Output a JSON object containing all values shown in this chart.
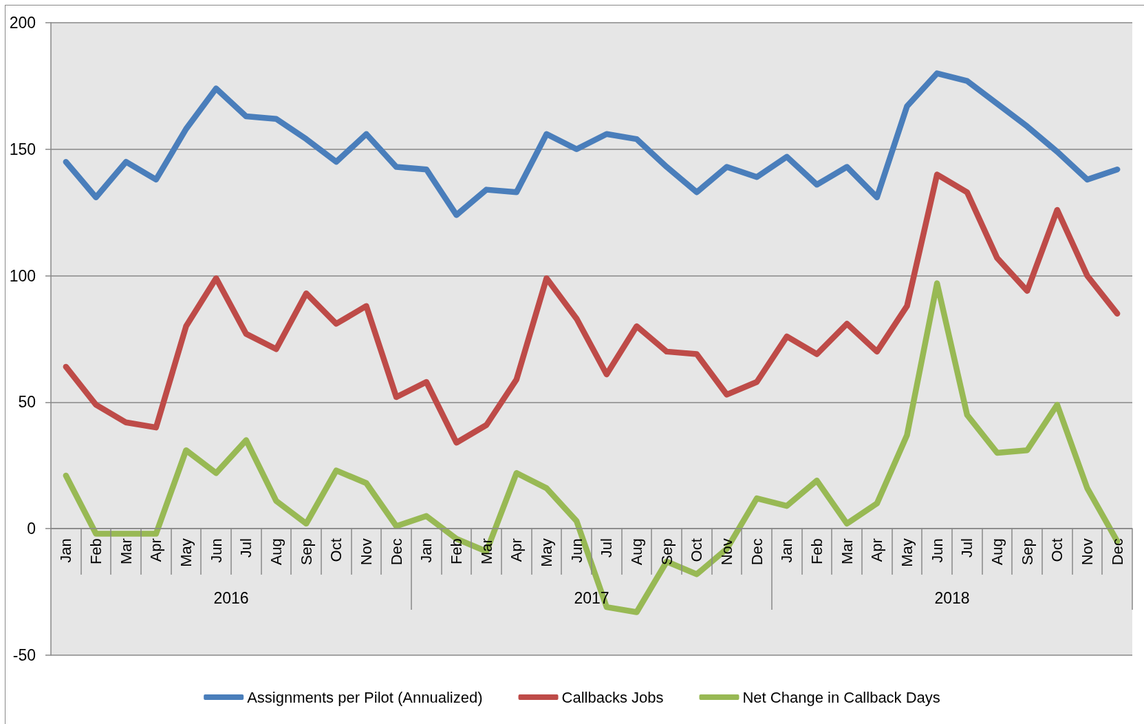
{
  "chart_data": {
    "type": "line",
    "categories": [
      "Jan",
      "Feb",
      "Mar",
      "Apr",
      "May",
      "Jun",
      "Jul",
      "Aug",
      "Sep",
      "Oct",
      "Nov",
      "Dec",
      "Jan",
      "Feb",
      "Mar",
      "Apr",
      "May",
      "Jun",
      "Jul",
      "Aug",
      "Sep",
      "Oct",
      "Nov",
      "Dec",
      "Jan",
      "Feb",
      "Mar",
      "Apr",
      "May",
      "Jun",
      "Jul",
      "Aug",
      "Sep",
      "Oct",
      "Nov",
      "Dec"
    ],
    "series": [
      {
        "name": "Assignments per Pilot (Annualized)",
        "color": "#4a7ebb",
        "values": [
          145,
          131,
          145,
          138,
          158,
          174,
          163,
          162,
          154,
          145,
          156,
          143,
          142,
          124,
          134,
          133,
          156,
          150,
          156,
          154,
          143,
          133,
          143,
          139,
          147,
          136,
          143,
          131,
          167,
          180,
          177,
          168,
          159,
          149,
          138,
          142
        ]
      },
      {
        "name": "Callbacks Jobs",
        "color": "#be4b48",
        "values": [
          64,
          49,
          42,
          40,
          80,
          99,
          77,
          71,
          93,
          81,
          88,
          52,
          58,
          34,
          41,
          59,
          99,
          83,
          61,
          80,
          70,
          69,
          53,
          58,
          76,
          69,
          81,
          70,
          88,
          140,
          133,
          107,
          94,
          126,
          100,
          85
        ]
      },
      {
        "name": "Net Change in Callback Days",
        "color": "#98b954",
        "values": [
          21,
          -2,
          -2,
          -2,
          31,
          22,
          35,
          11,
          2,
          23,
          18,
          1,
          5,
          -4,
          -9,
          22,
          16,
          3,
          -31,
          -33,
          -13,
          -18,
          -8,
          12,
          9,
          19,
          2,
          10,
          37,
          97,
          45,
          30,
          31,
          49,
          16,
          -5
        ]
      }
    ],
    "annotations": [
      "2016",
      "2017",
      "2018"
    ],
    "ylim": [
      -50,
      200
    ],
    "yticks": [
      -50,
      0,
      50,
      100,
      150,
      200
    ],
    "grid": "y",
    "legend": "bottom"
  }
}
